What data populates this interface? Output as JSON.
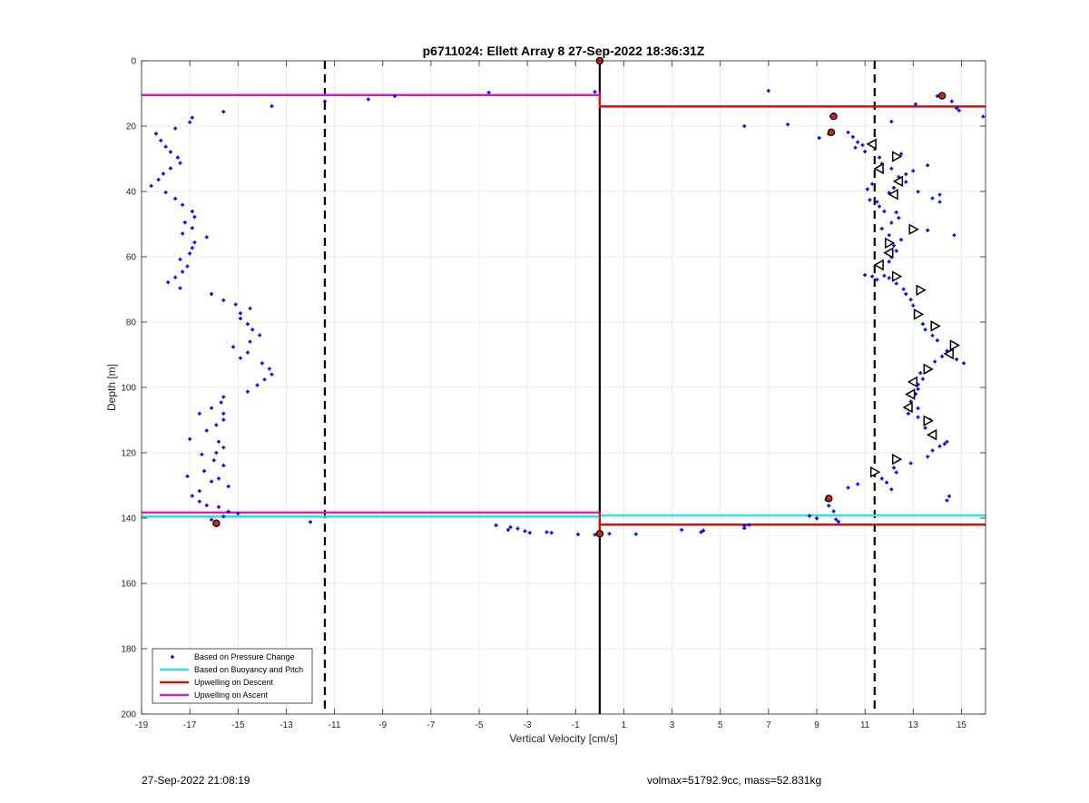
{
  "footer": {
    "timestamp": "27-Sep-2022 21:08:19",
    "info": "volmax=51792.9cc, mass=52.831kg"
  },
  "chart_data": {
    "type": "scatter",
    "title": "p6711024: Ellett Array 8 27-Sep-2022 18:36:31Z",
    "xlabel": "Vertical Velocity [cm/s]",
    "ylabel": "Depth [m]",
    "xlim": [
      -19,
      16
    ],
    "ylim": [
      0,
      200
    ],
    "y_reversed": true,
    "grid": true,
    "legend_position": "bottom-left",
    "xticks": [
      -19,
      -17,
      -15,
      -13,
      -11,
      -9,
      -7,
      -5,
      -3,
      -1,
      1,
      3,
      5,
      7,
      9,
      11,
      13,
      15
    ],
    "yticks": [
      0,
      20,
      40,
      60,
      80,
      100,
      120,
      140,
      160,
      180,
      200
    ],
    "colors": {
      "pressure": "#0000ff",
      "buoyancy": "#33e0e6",
      "descent": "#d01010",
      "ascent": "#cc22cc",
      "reference": "#000000",
      "marker_fill": "#cc2222"
    },
    "legend": [
      {
        "name": "Based on Pressure Change",
        "style": "dot",
        "color": "#0000ff"
      },
      {
        "name": "Based on Buoyancy and Pitch",
        "style": "line",
        "color": "#33e0e6"
      },
      {
        "name": "Upwelling on Descent",
        "style": "line",
        "color": "#d01010"
      },
      {
        "name": "Upwelling on Ascent",
        "style": "line",
        "color": "#cc22cc"
      }
    ],
    "vertical_lines": [
      {
        "x": -11.4,
        "style": "dashed",
        "color": "#000000"
      },
      {
        "x": 11.4,
        "style": "dashed",
        "color": "#000000"
      },
      {
        "x": 0,
        "style": "solid",
        "color": "#000000"
      }
    ],
    "horizontal_segments": [
      {
        "y": 10.5,
        "x_from": -19,
        "x_to": 0,
        "series": "ascent"
      },
      {
        "y": 14,
        "x_from": 0,
        "x_to": 16,
        "series": "descent"
      },
      {
        "y": 138.3,
        "x_from": -19,
        "x_to": 0,
        "series": "ascent"
      },
      {
        "y": 139.5,
        "x_from": -19,
        "x_to": 0,
        "series": "buoyancy"
      },
      {
        "y": 139.2,
        "x_from": 0,
        "x_to": 16,
        "series": "buoyancy"
      },
      {
        "y": 142,
        "x_from": 0,
        "x_to": 16,
        "series": "descent"
      }
    ],
    "step_segments": [
      {
        "points": [
          [
            0,
            9.5
          ],
          [
            0,
            14.5
          ]
        ],
        "series": "descent"
      },
      {
        "points": [
          [
            0,
            138
          ],
          [
            0,
            145
          ]
        ],
        "series": "descent"
      }
    ],
    "pressure_points": [
      [
        -4.6,
        9.7
      ],
      [
        -8.5,
        10.8
      ],
      [
        -9.6,
        11.8
      ],
      [
        -11.4,
        12.4
      ],
      [
        -13.6,
        13.9
      ],
      [
        -15.6,
        15.6
      ],
      [
        -16.9,
        17.4
      ],
      [
        -17.0,
        18.8
      ],
      [
        -17.6,
        20.7
      ],
      [
        -18.4,
        22.3
      ],
      [
        -18.2,
        24.4
      ],
      [
        -18.0,
        26.3
      ],
      [
        -17.8,
        27.9
      ],
      [
        -17.5,
        29.6
      ],
      [
        -17.4,
        31.3
      ],
      [
        -17.8,
        32.9
      ],
      [
        -18.1,
        34.6
      ],
      [
        -18.3,
        36.4
      ],
      [
        -18.6,
        38.3
      ],
      [
        -18.0,
        40.3
      ],
      [
        -17.6,
        42.2
      ],
      [
        -17.3,
        44.1
      ],
      [
        -16.9,
        46.1
      ],
      [
        -16.8,
        47.8
      ],
      [
        -17.2,
        49.5
      ],
      [
        -16.9,
        51.2
      ],
      [
        -17.3,
        52.9
      ],
      [
        -16.3,
        54.0
      ],
      [
        -16.8,
        55.6
      ],
      [
        -16.9,
        57.3
      ],
      [
        -17.0,
        59.0
      ],
      [
        -17.4,
        60.8
      ],
      [
        -17.1,
        62.9
      ],
      [
        -17.3,
        64.6
      ],
      [
        -17.6,
        66.3
      ],
      [
        -17.9,
        67.8
      ],
      [
        -17.4,
        69.6
      ],
      [
        -16.1,
        71.4
      ],
      [
        -15.6,
        73.3
      ],
      [
        -15.1,
        74.6
      ],
      [
        -14.5,
        75.8
      ],
      [
        -14.9,
        77.3
      ],
      [
        -14.9,
        78.9
      ],
      [
        -14.6,
        80.6
      ],
      [
        -14.4,
        82.3
      ],
      [
        -14.1,
        84.0
      ],
      [
        -14.5,
        86.0
      ],
      [
        -15.2,
        87.6
      ],
      [
        -14.6,
        89.3
      ],
      [
        -14.9,
        91.0
      ],
      [
        -14.0,
        92.6
      ],
      [
        -13.7,
        94.3
      ],
      [
        -13.6,
        96.0
      ],
      [
        -13.9,
        97.6
      ],
      [
        -14.2,
        99.3
      ],
      [
        -14.6,
        101.3
      ],
      [
        -15.6,
        102.9
      ],
      [
        -15.7,
        104.6
      ],
      [
        -16.1,
        106.3
      ],
      [
        -15.6,
        108.0
      ],
      [
        -16.6,
        108.0
      ],
      [
        -15.6,
        109.9
      ],
      [
        -15.9,
        111.5
      ],
      [
        -16.3,
        113.2
      ],
      [
        -17.0,
        115.8
      ],
      [
        -15.8,
        116.6
      ],
      [
        -15.6,
        118.4
      ],
      [
        -15.9,
        120.0
      ],
      [
        -16.5,
        120.5
      ],
      [
        -16.0,
        122.3
      ],
      [
        -15.6,
        123.9
      ],
      [
        -16.4,
        125.6
      ],
      [
        -17.1,
        127.2
      ],
      [
        -15.8,
        127.9
      ],
      [
        -16.1,
        128.8
      ],
      [
        -15.4,
        130.3
      ],
      [
        -16.6,
        131.7
      ],
      [
        -16.9,
        133.2
      ],
      [
        -16.6,
        134.9
      ],
      [
        -16.3,
        136.1
      ],
      [
        -15.8,
        136.6
      ],
      [
        -15.4,
        138.0
      ],
      [
        -15.0,
        138.6
      ],
      [
        -15.6,
        139.5
      ],
      [
        -16.1,
        140.5
      ],
      [
        -12.0,
        141.2
      ],
      [
        -4.3,
        142.2
      ],
      [
        -3.7,
        142.8
      ],
      [
        -3.4,
        143.2
      ],
      [
        -3.8,
        143.6
      ],
      [
        -3.1,
        144.0
      ],
      [
        -2.9,
        144.5
      ],
      [
        -2.2,
        144.3
      ],
      [
        -2.0,
        144.5
      ],
      [
        -0.9,
        145.0
      ],
      [
        -0.2,
        145.1
      ],
      [
        0.4,
        144.8
      ],
      [
        1.5,
        144.9
      ],
      [
        3.4,
        143.6
      ],
      [
        4.2,
        144.3
      ],
      [
        4.3,
        143.8
      ],
      [
        6.0,
        143.1
      ],
      [
        6.0,
        142.4
      ],
      [
        6.2,
        142.1
      ],
      [
        8.7,
        139.3
      ],
      [
        9.0,
        140.1
      ],
      [
        9.8,
        140.4
      ],
      [
        9.9,
        141.1
      ],
      [
        9.7,
        137.9
      ],
      [
        9.5,
        136.2
      ],
      [
        9.4,
        134.4
      ],
      [
        10.3,
        130.7
      ],
      [
        10.7,
        129.6
      ],
      [
        11.7,
        127.9
      ],
      [
        11.9,
        129.1
      ],
      [
        12.1,
        131.2
      ],
      [
        12.2,
        124.6
      ],
      [
        12.3,
        126.0
      ],
      [
        12.9,
        123.2
      ],
      [
        13.6,
        121.2
      ],
      [
        13.8,
        119.3
      ],
      [
        14.1,
        118.0
      ],
      [
        14.3,
        117.3
      ],
      [
        14.4,
        116.6
      ],
      [
        14.5,
        133.3
      ],
      [
        14.4,
        134.6
      ],
      [
        13.2,
        109.1
      ],
      [
        13.7,
        109.9
      ],
      [
        13.5,
        112.4
      ],
      [
        12.8,
        108.0
      ],
      [
        13.2,
        106.4
      ],
      [
        12.9,
        104.3
      ],
      [
        13.1,
        102.0
      ],
      [
        13.2,
        100.5
      ],
      [
        13.2,
        99.1
      ],
      [
        13.4,
        97.4
      ],
      [
        13.3,
        95.6
      ],
      [
        13.6,
        94.2
      ],
      [
        13.9,
        92.1
      ],
      [
        14.2,
        90.5
      ],
      [
        14.4,
        88.8
      ],
      [
        14.8,
        91.4
      ],
      [
        15.1,
        92.6
      ],
      [
        14.6,
        87.2
      ],
      [
        14.0,
        85.6
      ],
      [
        13.8,
        84.1
      ],
      [
        13.5,
        82.3
      ],
      [
        13.4,
        80.6
      ],
      [
        13.1,
        78.5
      ],
      [
        13.1,
        76.7
      ],
      [
        13.0,
        74.9
      ],
      [
        12.9,
        73.1
      ],
      [
        12.7,
        71.4
      ],
      [
        12.6,
        69.9
      ],
      [
        12.3,
        68.2
      ],
      [
        12.0,
        66.5
      ],
      [
        11.8,
        65.8
      ],
      [
        11.3,
        66.0
      ],
      [
        11.0,
        65.6
      ],
      [
        11.5,
        67.0
      ],
      [
        11.7,
        63.4
      ],
      [
        12.0,
        61.5
      ],
      [
        12.1,
        60.1
      ],
      [
        12.3,
        58.2
      ],
      [
        12.2,
        56.6
      ],
      [
        12.5,
        54.8
      ],
      [
        12.0,
        53.4
      ],
      [
        11.7,
        51.4
      ],
      [
        12.1,
        49.6
      ],
      [
        12.4,
        48.1
      ],
      [
        12.3,
        46.4
      ],
      [
        11.8,
        46.1
      ],
      [
        11.6,
        44.6
      ],
      [
        11.5,
        43.2
      ],
      [
        11.2,
        42.6
      ],
      [
        12.0,
        40.4
      ],
      [
        12.2,
        38.9
      ],
      [
        12.7,
        37.1
      ],
      [
        12.4,
        35.6
      ],
      [
        12.7,
        34.7
      ],
      [
        12.1,
        33.0
      ],
      [
        11.7,
        31.5
      ],
      [
        11.6,
        29.6
      ],
      [
        12.5,
        28.5
      ],
      [
        11.0,
        27.8
      ],
      [
        10.6,
        26.6
      ],
      [
        10.9,
        25.8
      ],
      [
        10.7,
        24.9
      ],
      [
        10.5,
        23.3
      ],
      [
        10.3,
        21.9
      ],
      [
        9.5,
        22.4
      ],
      [
        9.1,
        23.6
      ],
      [
        12.1,
        18.6
      ],
      [
        11.1,
        39.3
      ],
      [
        11.3,
        37.7
      ],
      [
        13.0,
        33.7
      ],
      [
        13.6,
        32.0
      ],
      [
        13.8,
        42.1
      ],
      [
        14.1,
        41.0
      ],
      [
        14.1,
        43.2
      ],
      [
        13.2,
        40.1
      ],
      [
        13.6,
        51.9
      ],
      [
        14.7,
        53.4
      ],
      [
        14.6,
        12.4
      ],
      [
        14.8,
        14.5
      ],
      [
        14.9,
        15.2
      ],
      [
        15.9,
        17.1
      ],
      [
        13.1,
        13.3
      ],
      [
        14.0,
        10.8
      ],
      [
        7.0,
        9.2
      ],
      [
        7.8,
        19.5
      ],
      [
        6.0,
        20.0
      ],
      [
        9.6,
        17.0
      ],
      [
        -0.2,
        9.5
      ],
      [
        0.0,
        0.0
      ]
    ],
    "red_markers": [
      [
        0.0,
        0.0
      ],
      [
        14.2,
        10.7
      ],
      [
        9.7,
        17.0
      ],
      [
        9.6,
        21.9
      ],
      [
        9.5,
        134.0
      ],
      [
        -15.9,
        141.6
      ],
      [
        0.0,
        144.8
      ]
    ],
    "triangle_markers": [
      {
        "x": 11.3,
        "y": 25.5,
        "dir": "left"
      },
      {
        "x": 12.3,
        "y": 29.3,
        "dir": "right"
      },
      {
        "x": 11.6,
        "y": 33.0,
        "dir": "left"
      },
      {
        "x": 12.4,
        "y": 36.9,
        "dir": "left"
      },
      {
        "x": 12.2,
        "y": 40.9,
        "dir": "left"
      },
      {
        "x": 13.0,
        "y": 51.6,
        "dir": "right"
      },
      {
        "x": 12.0,
        "y": 55.8,
        "dir": "right"
      },
      {
        "x": 12.0,
        "y": 58.8,
        "dir": "left"
      },
      {
        "x": 11.6,
        "y": 62.5,
        "dir": "left"
      },
      {
        "x": 12.3,
        "y": 66.0,
        "dir": "right"
      },
      {
        "x": 13.3,
        "y": 70.2,
        "dir": "right"
      },
      {
        "x": 13.2,
        "y": 77.6,
        "dir": "right"
      },
      {
        "x": 13.9,
        "y": 81.2,
        "dir": "right"
      },
      {
        "x": 14.7,
        "y": 87.1,
        "dir": "right"
      },
      {
        "x": 14.5,
        "y": 89.7,
        "dir": "left"
      },
      {
        "x": 13.6,
        "y": 94.4,
        "dir": "right"
      },
      {
        "x": 13.0,
        "y": 98.3,
        "dir": "left"
      },
      {
        "x": 12.9,
        "y": 102.1,
        "dir": "left"
      },
      {
        "x": 12.8,
        "y": 106.1,
        "dir": "left"
      },
      {
        "x": 13.6,
        "y": 110.2,
        "dir": "right"
      },
      {
        "x": 13.8,
        "y": 114.5,
        "dir": "left"
      },
      {
        "x": 12.3,
        "y": 122.0,
        "dir": "right"
      },
      {
        "x": 11.4,
        "y": 125.9,
        "dir": "right"
      }
    ]
  }
}
